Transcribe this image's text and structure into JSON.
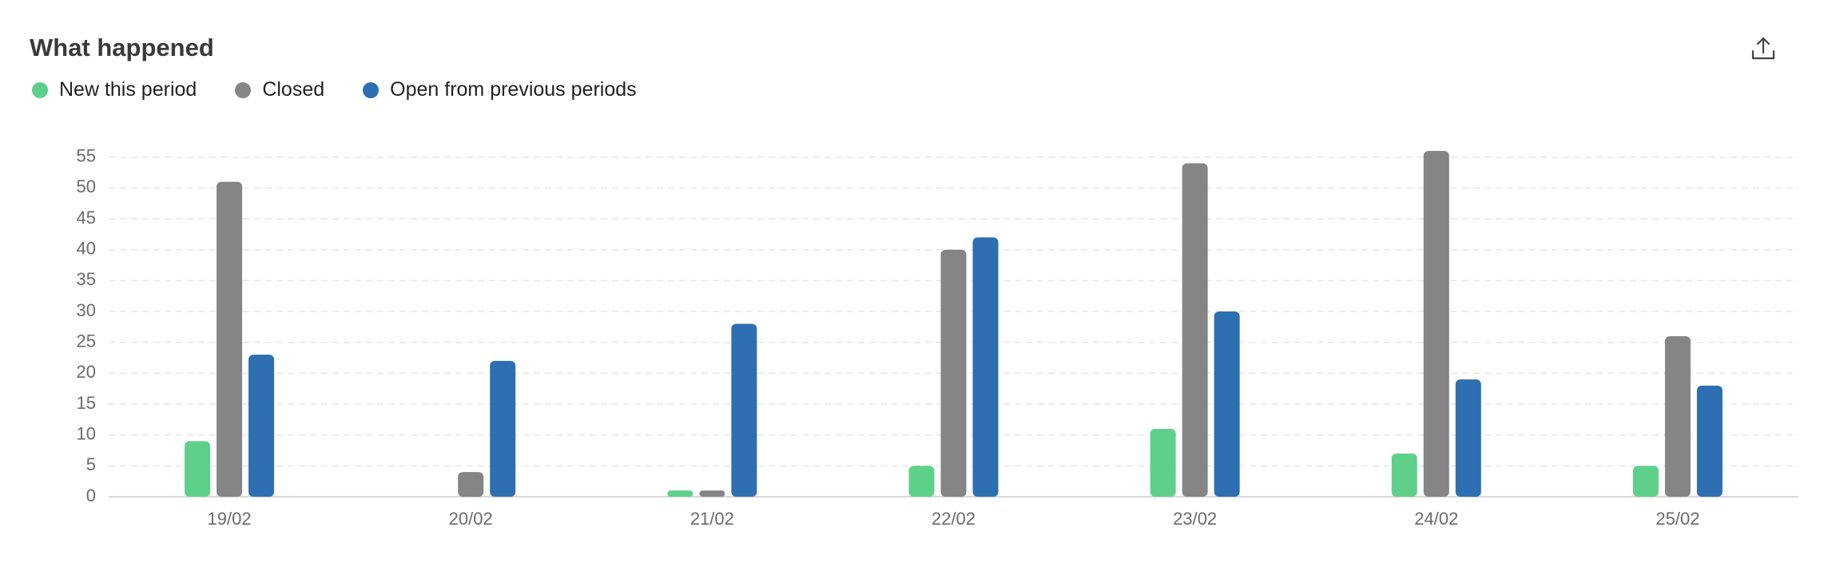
{
  "chart_data": {
    "type": "bar",
    "title": "What happened",
    "categories": [
      "19/02",
      "20/02",
      "21/02",
      "22/02",
      "23/02",
      "24/02",
      "25/02"
    ],
    "series": [
      {
        "name": "New this period",
        "color": "#5fd08a",
        "values": [
          9,
          0,
          1,
          5,
          11,
          7,
          5
        ]
      },
      {
        "name": "Closed",
        "color": "#858585",
        "values": [
          51,
          4,
          1,
          40,
          54,
          56,
          26
        ]
      },
      {
        "name": "Open from previous periods",
        "color": "#2e6fb2",
        "values": [
          23,
          22,
          28,
          42,
          30,
          19,
          18
        ]
      }
    ],
    "ylim": [
      0,
      56
    ],
    "yticks": [
      0,
      5,
      10,
      15,
      20,
      25,
      30,
      35,
      40,
      45,
      50,
      55
    ],
    "grid": true
  }
}
